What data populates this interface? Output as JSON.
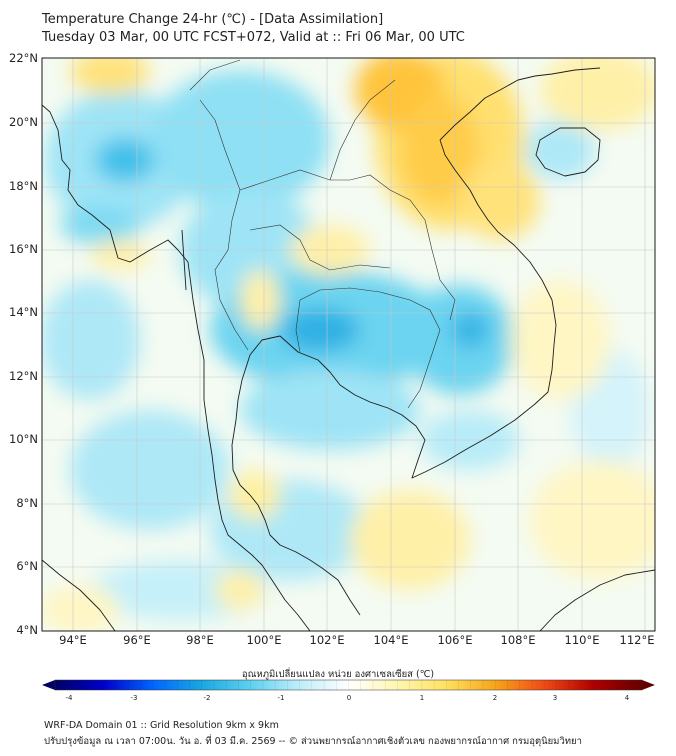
{
  "header": {
    "title_line1": "Temperature Change 24-hr (℃) - [Data Assimilation]",
    "title_line2": "Tuesday 03 Mar, 00 UTC FCST+072, Valid at :: Fri 06 Mar, 00 UTC"
  },
  "map": {
    "lat_labels": [
      "22°N",
      "20°N",
      "18°N",
      "16°N",
      "14°N",
      "12°N",
      "10°N",
      "8°N",
      "6°N",
      "4°N"
    ],
    "lon_labels": [
      "94°E",
      "96°E",
      "98°E",
      "100°E",
      "102°E",
      "104°E",
      "106°E",
      "108°E",
      "110°E",
      "112°E"
    ],
    "colors": {
      "neutral": "#ffffff",
      "cool_light": "#bfeefa",
      "cool": "#5fd0f0",
      "cool_strong": "#1aa8e0",
      "warm_light": "#fff6b0",
      "warm": "#ffd24a",
      "warm_strong": "#f6a51a",
      "coast": "#222222",
      "grid": "#c8c8c8"
    }
  },
  "colorbar": {
    "title": "อุณหภูมิเปลี่ยนแปลง หน่วย องศาเซลเซียส (℃)",
    "tick_labels": [
      "-4",
      "-3",
      "-2",
      "-1",
      "0",
      "1",
      "2",
      "3",
      "4"
    ],
    "colors": [
      "#000066",
      "#0000cc",
      "#0066ff",
      "#1aa8e0",
      "#5fd0f0",
      "#bfeefa",
      "#ffffff",
      "#fff6b0",
      "#ffe060",
      "#f6a51a",
      "#ef4a16",
      "#b00000",
      "#660000"
    ]
  },
  "footer": {
    "line1": "WRF-DA Domain 01 :: Grid Resolution 9km x 9km",
    "line2": "ปรับปรุงข้อมูล ณ เวลา 07:00น. วัน อ. ที่ 03 มี.ค. 2569 -- © ส่วนพยากรณ์อากาศเชิงตัวเลข กองพยากรณ์อากาศ กรมอุตุนิยมวิทยา"
  }
}
